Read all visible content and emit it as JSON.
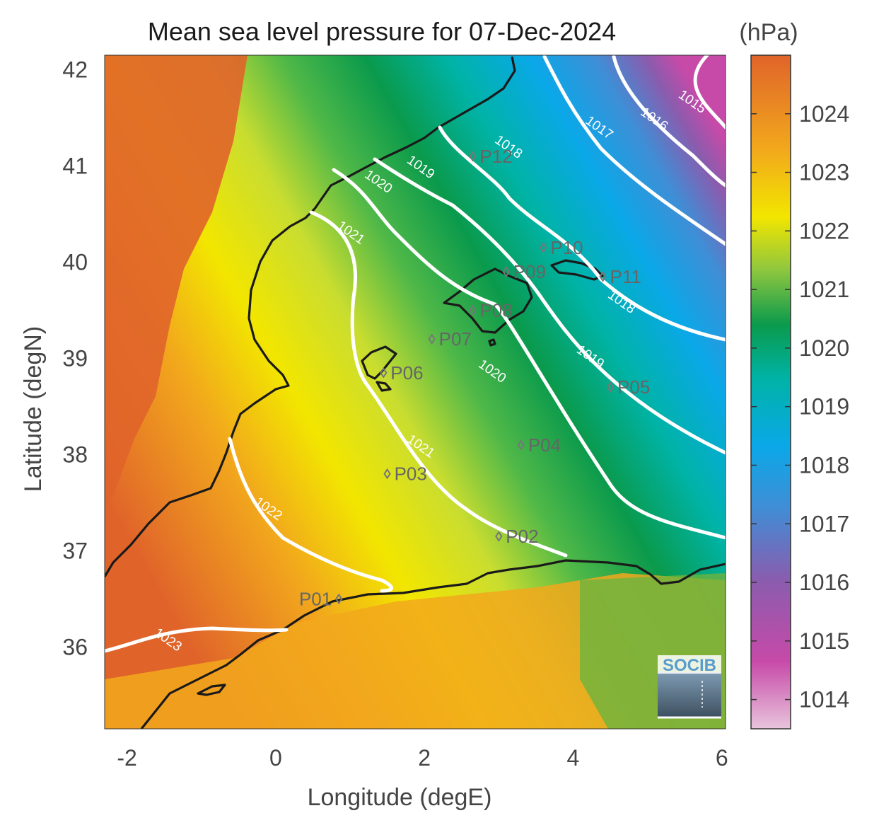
{
  "title": "Mean sea level pressure for 07-Dec-2024",
  "xlabel": "Longitude (degE)",
  "ylabel": "Latitude (degN)",
  "units": "(hPa)",
  "logo_text": "SOCIB",
  "xticks": [
    "-2",
    "0",
    "2",
    "4",
    "6"
  ],
  "yticks": [
    "42",
    "41",
    "40",
    "39",
    "38",
    "37",
    "36"
  ],
  "colorbar": {
    "range": [
      1013.5,
      1025
    ],
    "ticks": [
      "1024",
      "1023",
      "1022",
      "1021",
      "1020",
      "1019",
      "1018",
      "1017",
      "1016",
      "1015",
      "1014"
    ],
    "colors": [
      "#e8c4dc",
      "#c74aa8",
      "#8a5cae",
      "#3f8ed6",
      "#0aa8e8",
      "#00b3a6",
      "#0a9a4c",
      "#8dc63f",
      "#f2e600",
      "#f2a81c",
      "#e0642a"
    ]
  },
  "map": {
    "lon_range": [
      -2.3,
      6.05
    ],
    "lat_range": [
      35.15,
      42.15
    ],
    "contour_levels": [
      "1015",
      "1016",
      "1017",
      "1018",
      "1019",
      "1020",
      "1021",
      "1022",
      "1023"
    ],
    "contour_labels": [
      {
        "text": "1015",
        "lon": 5.57,
        "lat": 41.63
      },
      {
        "text": "1016",
        "lon": 5.06,
        "lat": 41.45
      },
      {
        "text": "1017",
        "lon": 4.32,
        "lat": 41.36
      },
      {
        "text": "1018",
        "lon": 3.1,
        "lat": 41.16
      },
      {
        "text": "1018",
        "lon": 4.62,
        "lat": 39.55
      },
      {
        "text": "1019",
        "lon": 1.92,
        "lat": 40.95
      },
      {
        "text": "1019",
        "lon": 4.2,
        "lat": 38.98
      },
      {
        "text": "1020",
        "lon": 1.35,
        "lat": 40.8
      },
      {
        "text": "1020",
        "lon": 2.88,
        "lat": 38.83
      },
      {
        "text": "1021",
        "lon": 0.98,
        "lat": 40.27
      },
      {
        "text": "1021",
        "lon": 1.92,
        "lat": 38.05
      },
      {
        "text": "1022",
        "lon": -0.13,
        "lat": 37.4
      },
      {
        "text": "1023",
        "lon": -1.48,
        "lat": 36.04
      }
    ],
    "stations": [
      {
        "name": "P01",
        "lon": 0.85,
        "lat": 36.5
      },
      {
        "name": "P02",
        "lon": 3.0,
        "lat": 37.15
      },
      {
        "name": "P03",
        "lon": 1.5,
        "lat": 37.8
      },
      {
        "name": "P04",
        "lon": 3.3,
        "lat": 38.1
      },
      {
        "name": "P05",
        "lon": 4.5,
        "lat": 38.7
      },
      {
        "name": "P06",
        "lon": 1.45,
        "lat": 38.85
      },
      {
        "name": "P07",
        "lon": 2.1,
        "lat": 39.2
      },
      {
        "name": "P08",
        "lon": 2.65,
        "lat": 39.5
      },
      {
        "name": "P09",
        "lon": 3.1,
        "lat": 39.9
      },
      {
        "name": "P10",
        "lon": 3.6,
        "lat": 40.15
      },
      {
        "name": "P11",
        "lon": 4.4,
        "lat": 39.85
      },
      {
        "name": "P12",
        "lon": 2.65,
        "lat": 41.1
      }
    ]
  }
}
